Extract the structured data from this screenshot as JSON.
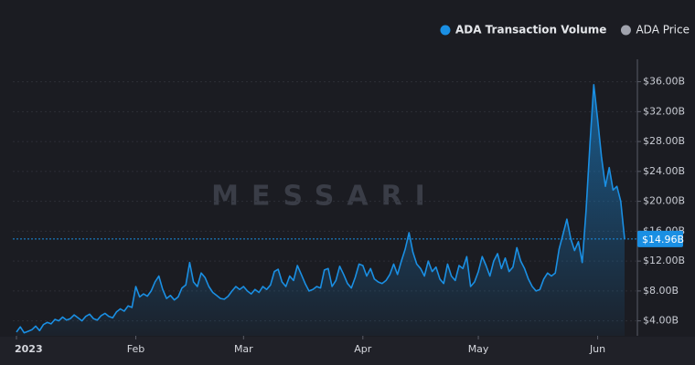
{
  "chart_data": {
    "type": "area",
    "watermark": "MESSARI",
    "categories": [
      "2023",
      null,
      null,
      null,
      null,
      null,
      null,
      null,
      null,
      null,
      null,
      null,
      null,
      null,
      null,
      null,
      null,
      null,
      null,
      null,
      null,
      null,
      null,
      null,
      null,
      null,
      null,
      null,
      null,
      null,
      null,
      "Feb",
      null,
      null,
      null,
      null,
      null,
      null,
      null,
      null,
      null,
      null,
      null,
      null,
      null,
      null,
      null,
      null,
      null,
      null,
      null,
      null,
      null,
      null,
      null,
      null,
      null,
      null,
      null,
      "Mar",
      null,
      null,
      null,
      null,
      null,
      null,
      null,
      null,
      null,
      null,
      null,
      null,
      null,
      null,
      null,
      null,
      null,
      null,
      null,
      null,
      null,
      null,
      null,
      null,
      null,
      null,
      null,
      null,
      null,
      null,
      "Apr",
      null,
      null,
      null,
      null,
      null,
      null,
      null,
      null,
      null,
      null,
      null,
      null,
      null,
      null,
      null,
      null,
      null,
      null,
      null,
      null,
      null,
      null,
      null,
      null,
      null,
      null,
      null,
      null,
      null,
      "May",
      null,
      null,
      null,
      null,
      null,
      null,
      null,
      null,
      null,
      null,
      null,
      null,
      null,
      null,
      null,
      null,
      null,
      null,
      null,
      null,
      null,
      null,
      null,
      null,
      null,
      null,
      null,
      null,
      null,
      null,
      "Jun",
      null,
      null,
      null,
      null,
      null,
      null,
      null
    ],
    "series": [
      {
        "name": "ADA Transaction Volume",
        "color": "#1a8fe3",
        "values": [
          2.5,
          3.2,
          2.4,
          2.6,
          2.8,
          3.3,
          2.7,
          3.5,
          3.8,
          3.6,
          4.2,
          4.0,
          4.5,
          4.1,
          4.3,
          4.8,
          4.4,
          4.0,
          4.6,
          4.9,
          4.3,
          4.1,
          4.7,
          5.0,
          4.6,
          4.4,
          5.2,
          5.6,
          5.3,
          6.0,
          5.8,
          8.6,
          7.2,
          7.6,
          7.3,
          8.0,
          9.2,
          10.0,
          8.2,
          7.0,
          7.4,
          6.8,
          7.2,
          8.4,
          8.8,
          11.8,
          9.2,
          8.6,
          10.4,
          9.8,
          8.6,
          7.8,
          7.4,
          7.0,
          6.9,
          7.3,
          8.0,
          8.6,
          8.2,
          8.6,
          8.0,
          7.6,
          8.2,
          7.8,
          8.6,
          8.2,
          8.8,
          10.6,
          10.9,
          9.2,
          8.6,
          10.0,
          9.4,
          11.4,
          10.2,
          9.0,
          8.0,
          8.2,
          8.6,
          8.4,
          10.8,
          11.0,
          8.6,
          9.4,
          11.3,
          10.2,
          9.0,
          8.4,
          9.8,
          11.6,
          11.4,
          10.0,
          11.0,
          9.6,
          9.2,
          9.0,
          9.4,
          10.2,
          11.6,
          10.2,
          12.0,
          13.6,
          15.8,
          13.2,
          11.6,
          11.0,
          10.0,
          12.0,
          10.6,
          11.2,
          9.6,
          9.0,
          11.6,
          10.0,
          9.4,
          11.4,
          11.0,
          12.6,
          8.6,
          9.2,
          10.6,
          12.6,
          11.4,
          10.0,
          12.0,
          13.0,
          11.0,
          12.4,
          10.6,
          11.2,
          13.8,
          12.0,
          11.0,
          9.6,
          8.6,
          8.0,
          8.2,
          9.6,
          10.4,
          10.0,
          10.4,
          13.6,
          15.6,
          17.6,
          15.0,
          13.4,
          14.6,
          11.8,
          18.8,
          27.6,
          35.6,
          31.0,
          26.0,
          22.0,
          24.5,
          21.5,
          22.0,
          20.0,
          14.96
        ]
      },
      {
        "name": "ADA Price",
        "color": "#a0a3ad"
      }
    ],
    "current_marker": {
      "value": 14.96,
      "label": "$14.96B"
    },
    "ylim": [
      2,
      39
    ],
    "yticks": [
      {
        "value": 4,
        "label": "$4.00B"
      },
      {
        "value": 8,
        "label": "$8.00B"
      },
      {
        "value": 12,
        "label": "$12.00B"
      },
      {
        "value": 16,
        "label": "$16.00B"
      },
      {
        "value": 20,
        "label": "$20.00B"
      },
      {
        "value": 24,
        "label": "$24.00B"
      },
      {
        "value": 28,
        "label": "$28.00B"
      },
      {
        "value": 32,
        "label": "$32.00B"
      },
      {
        "value": 36,
        "label": "$36.00B"
      }
    ],
    "grid": true,
    "legend": "top-right"
  }
}
